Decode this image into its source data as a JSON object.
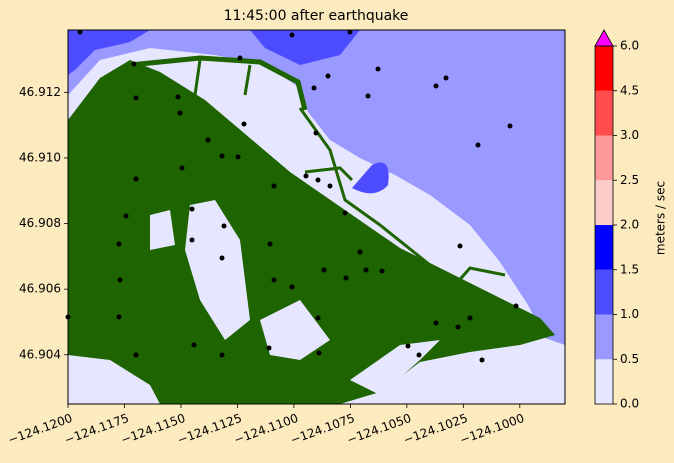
{
  "chart_data": {
    "type": "map",
    "title": "11:45:00 after earthquake",
    "xlim": [
      -124.12,
      -124.098
    ],
    "ylim": [
      46.9025,
      46.9139
    ],
    "xticks": [
      {
        "value": -124.12,
        "label": "−124.1200"
      },
      {
        "value": -124.1175,
        "label": "−124.1175"
      },
      {
        "value": -124.115,
        "label": "−124.1150"
      },
      {
        "value": -124.1125,
        "label": "−124.1125"
      },
      {
        "value": -124.11,
        "label": "−124.1100"
      },
      {
        "value": -124.1075,
        "label": "−124.1075"
      },
      {
        "value": -124.105,
        "label": "−124.1050"
      },
      {
        "value": -124.1025,
        "label": "−124.1025"
      },
      {
        "value": -124.1,
        "label": "−124.1000"
      }
    ],
    "yticks": [
      46.904,
      46.906,
      46.908,
      {
        "value": 46.91,
        "label": "46.910"
      },
      46.912
    ],
    "colorbar": {
      "label": "meters / sec",
      "ticks": [
        {
          "value": 0,
          "label": "0.0"
        },
        0.5,
        {
          "value": 1,
          "label": "1.0"
        },
        1.5,
        {
          "value": 2,
          "label": "2.0"
        },
        2.5,
        {
          "value": 3,
          "label": "3.0"
        },
        4.5,
        {
          "value": 6,
          "label": "6.0"
        }
      ],
      "colors": [
        "#e6e6ff",
        "#9999ff",
        "#4d4dff",
        "#0000ff",
        "#ffcccc",
        "#ff9999",
        "#ff4d4d",
        "#ff0000"
      ],
      "extend_color": "#ff00ff"
    }
  }
}
